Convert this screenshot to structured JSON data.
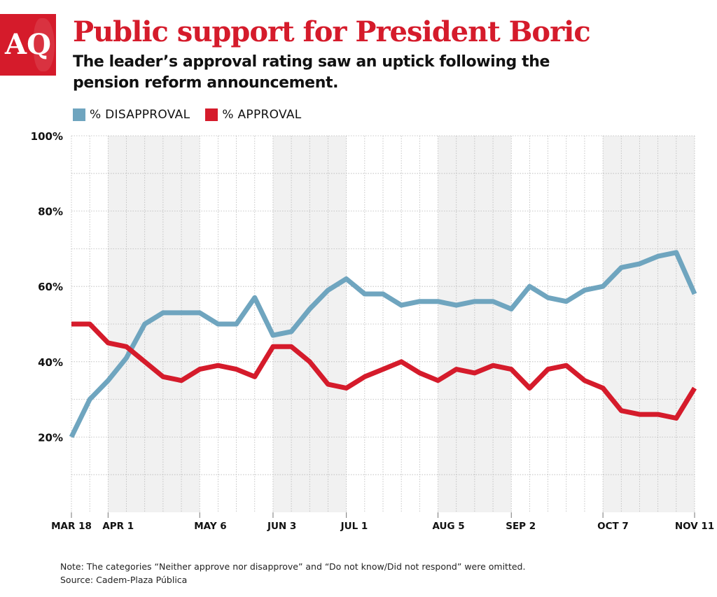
{
  "logo": {
    "text": "AQ"
  },
  "header": {
    "title": "Public support for President Boric",
    "subtitle": "The leader’s approval rating saw an uptick following the pension reform announcement."
  },
  "legend": [
    {
      "label": "% DISAPPROVAL",
      "color": "#6fa5bf"
    },
    {
      "label": "% APPROVAL",
      "color": "#d51b2b"
    }
  ],
  "footer": {
    "note": "Note: The categories “Neither approve nor disapprove” and “Do not know/Did not respond” were omitted.",
    "source": "Source: Cadem-Plaza Pública"
  },
  "chart_data": {
    "type": "line",
    "x_tick_labels": [
      "MAR 18",
      "APR 1",
      "MAY 6",
      "JUN 3",
      "JUL 1",
      "AUG 5",
      "SEP 2",
      "OCT 7",
      "NOV 11"
    ],
    "x_tick_positions": [
      0,
      2,
      7,
      11,
      15,
      20,
      24,
      29,
      34
    ],
    "ylim": [
      0,
      100
    ],
    "y_tick_labels": [
      "100%",
      "80%",
      "60%",
      "40%",
      "20%"
    ],
    "y_tick_values": [
      100,
      80,
      60,
      40,
      20
    ],
    "grid": true,
    "shaded_months": [
      [
        2,
        7
      ],
      [
        11,
        15
      ],
      [
        20,
        24
      ],
      [
        29,
        34
      ]
    ],
    "series": [
      {
        "name": "% DISAPPROVAL",
        "color": "#6fa5bf",
        "values": [
          20,
          30,
          35,
          41,
          50,
          53,
          53,
          53,
          50,
          50,
          57,
          47,
          48,
          54,
          59,
          62,
          58,
          58,
          55,
          56,
          56,
          55,
          56,
          56,
          54,
          60,
          57,
          56,
          59,
          60,
          65,
          66,
          68,
          69,
          58
        ]
      },
      {
        "name": "% APPROVAL",
        "color": "#d51b2b",
        "values": [
          50,
          50,
          45,
          44,
          40,
          36,
          35,
          38,
          39,
          38,
          36,
          44,
          44,
          40,
          34,
          33,
          36,
          38,
          40,
          37,
          35,
          38,
          37,
          39,
          38,
          33,
          38,
          39,
          35,
          33,
          27,
          26,
          26,
          25,
          33
        ]
      }
    ]
  }
}
